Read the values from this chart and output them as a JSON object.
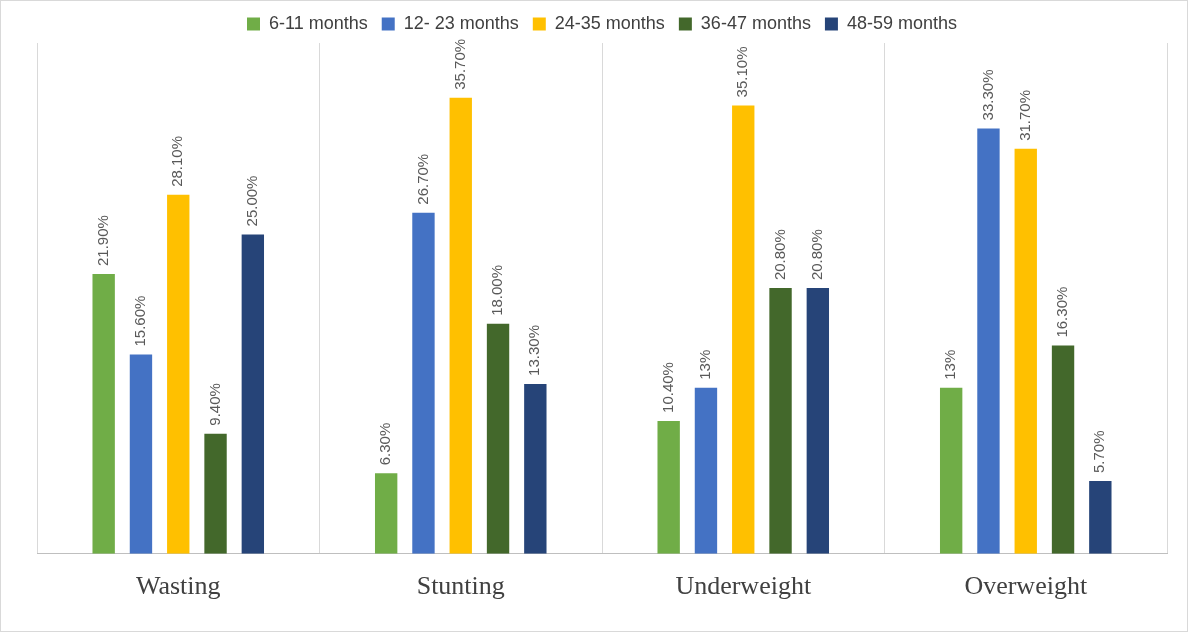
{
  "chart_data": {
    "type": "bar",
    "categories": [
      "Wasting",
      "Stunting",
      "Underweight",
      "Overweight"
    ],
    "series": [
      {
        "name": "6-11 months",
        "color": "#70ad47",
        "values": [
          21.9,
          6.3,
          10.4,
          13
        ],
        "value_labels": [
          "21.90%",
          "6.30%",
          "10.40%",
          "13%"
        ]
      },
      {
        "name": "12- 23 months",
        "color": "#4472c4",
        "values": [
          15.6,
          26.7,
          13,
          33.3
        ],
        "value_labels": [
          "15.60%",
          "26.70%",
          "13%",
          "33.30%"
        ]
      },
      {
        "name": "24-35 months",
        "color": "#ffc000",
        "values": [
          28.1,
          35.7,
          35.1,
          31.7
        ],
        "value_labels": [
          "28.10%",
          "35.70%",
          "35.10%",
          "31.70%"
        ]
      },
      {
        "name": "36-47 months",
        "color": "#43682b",
        "values": [
          9.4,
          18,
          20.8,
          16.3
        ],
        "value_labels": [
          "9.40%",
          "18.00%",
          "20.80%",
          "16.30%"
        ]
      },
      {
        "name": "48-59 months",
        "color": "#264478",
        "values": [
          25,
          13.3,
          20.8,
          5.7
        ],
        "value_labels": [
          "25.00%",
          "13.30%",
          "20.80%",
          "5.70%"
        ]
      }
    ],
    "grid": "x",
    "legend": "top",
    "tick_labels": "x"
  }
}
